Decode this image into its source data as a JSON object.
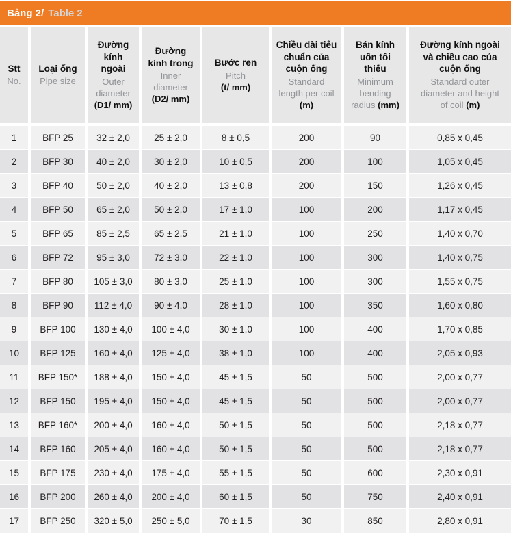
{
  "title": {
    "vi": "Bảng 2/",
    "en": "Table 2"
  },
  "colors": {
    "accent_orange": "#EF7B22",
    "title_en_gray": "#D6D6D6",
    "header_bg": "#E7E7E8",
    "row_odd_bg": "#F1F1F2",
    "row_even_bg": "#E2E2E4",
    "header_en_gray": "#919396",
    "text_dark": "#231F20"
  },
  "table": {
    "columns": [
      {
        "vi": "Stt",
        "en": "No.",
        "unit": ""
      },
      {
        "vi": "Loại ống",
        "en": "Pipe size",
        "unit": ""
      },
      {
        "vi": "Đường\nkính\nngoài",
        "en": "Outer\ndiameter\n",
        "unit": "(D1/ mm)"
      },
      {
        "vi": "Đường\nkính trong",
        "en": "Inner\ndiameter\n",
        "unit": "(D2/ mm)"
      },
      {
        "vi": "Bước ren",
        "en": "Pitch\n",
        "unit": "(t/ mm)"
      },
      {
        "vi": "Chiều dài tiêu\nchuẩn của\ncuộn ống",
        "en": "Standard\nlength per coil\n",
        "unit": "(m)"
      },
      {
        "vi": "Bán kính\nuốn tối\nthiểu",
        "en": "Minimum\nbending\nradius",
        "unit": "(mm)"
      },
      {
        "vi": "Đường kính ngoài\nvà chiều cao của\ncuộn ống",
        "en": "Standard outer\ndiameter and height\nof coil",
        "unit": "(m)"
      }
    ],
    "rows": [
      [
        "1",
        "BFP 25",
        "32 ± 2,0",
        "25 ± 2,0",
        "8 ± 0,5",
        "200",
        "90",
        "0,85 x 0,45"
      ],
      [
        "2",
        "BFP 30",
        "40 ± 2,0",
        "30 ± 2,0",
        "10 ± 0,5",
        "200",
        "100",
        "1,05 x 0,45"
      ],
      [
        "3",
        "BFP 40",
        "50 ± 2,0",
        "40 ± 2,0",
        "13 ± 0,8",
        "200",
        "150",
        "1,26 x 0,45"
      ],
      [
        "4",
        "BFP 50",
        "65 ± 2,0",
        "50 ± 2,0",
        "17 ± 1,0",
        "100",
        "200",
        "1,17 x 0,45"
      ],
      [
        "5",
        "BFP 65",
        "85 ± 2,5",
        "65 ± 2,5",
        "21 ± 1,0",
        "100",
        "250",
        "1,40 x 0,70"
      ],
      [
        "6",
        "BFP 72",
        "95 ± 3,0",
        "72 ± 3,0",
        "22 ± 1,0",
        "100",
        "300",
        "1,40 x 0,75"
      ],
      [
        "7",
        "BFP 80",
        "105 ± 3,0",
        "80 ± 3,0",
        "25 ± 1,0",
        "100",
        "300",
        "1,55 x 0,75"
      ],
      [
        "8",
        "BFP 90",
        "112 ± 4,0",
        "90 ± 4,0",
        "28 ± 1,0",
        "100",
        "350",
        "1,60 x 0,80"
      ],
      [
        "9",
        "BFP 100",
        "130 ± 4,0",
        "100 ± 4,0",
        "30 ± 1,0",
        "100",
        "400",
        "1,70 x 0,85"
      ],
      [
        "10",
        "BFP 125",
        "160 ± 4,0",
        "125 ± 4,0",
        "38 ± 1,0",
        "100",
        "400",
        "2,05 x 0,93"
      ],
      [
        "11",
        "BFP 150*",
        "188 ± 4,0",
        "150 ± 4,0",
        "45 ± 1,5",
        "50",
        "500",
        "2,00 x 0,77"
      ],
      [
        "12",
        "BFP 150",
        "195 ± 4,0",
        "150 ± 4,0",
        "45 ± 1,5",
        "50",
        "500",
        "2,00 x 0,77"
      ],
      [
        "13",
        "BFP 160*",
        "200 ± 4,0",
        "160 ± 4,0",
        "50 ± 1,5",
        "50",
        "500",
        "2,18 x 0,77"
      ],
      [
        "14",
        "BFP 160",
        "205 ± 4,0",
        "160 ± 4,0",
        "50 ± 1,5",
        "50",
        "500",
        "2,18 x 0,77"
      ],
      [
        "15",
        "BFP 175",
        "230 ± 4,0",
        "175 ± 4,0",
        "55 ± 1,5",
        "50",
        "600",
        "2,30 x 0,91"
      ],
      [
        "16",
        "BFP 200",
        "260 ± 4,0",
        "200 ± 4,0",
        "60 ± 1,5",
        "50",
        "750",
        "2,40 x 0,91"
      ],
      [
        "17",
        "BFP 250",
        "320 ± 5,0",
        "250 ± 5,0",
        "70 ± 1,5",
        "30",
        "850",
        "2,80 x 0,91"
      ]
    ]
  }
}
